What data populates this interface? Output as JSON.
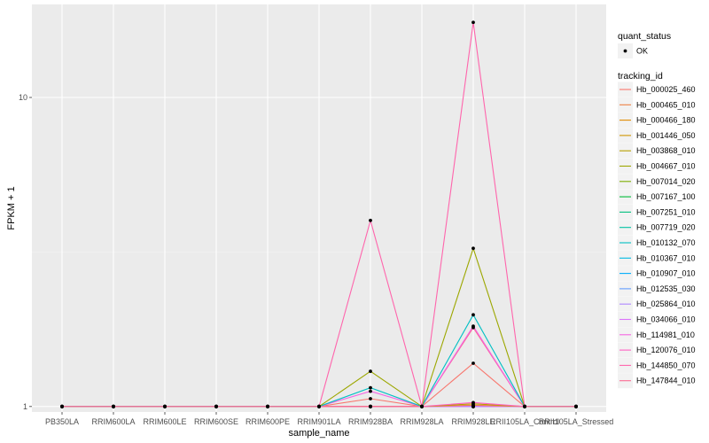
{
  "chart_data": {
    "type": "line",
    "title": "",
    "xlabel": "sample_name",
    "ylabel": "FPKM + 1",
    "y_scale": "log10",
    "ylim": [
      0.96,
      20
    ],
    "y_ticks": [
      1,
      10
    ],
    "y_tick_labels": [
      "1",
      "10"
    ],
    "grid": true,
    "panel_background": "#ebebeb",
    "categories": [
      "PB350LA",
      "RRIM600LA",
      "RRIM600LE",
      "RRIM600SE",
      "RRIM600PE",
      "RRIM901LA",
      "RRIM928BA",
      "RRIM928LA",
      "RRIM928LE",
      "RRII105LA_Control",
      "RRII105LA_Stressed"
    ],
    "legend": {
      "position": "right",
      "shape_title": "quant_status",
      "shape_items": [
        "OK"
      ],
      "color_title": "tracking_id"
    },
    "series": [
      {
        "name": "Hb_000025_460",
        "color": "#F8766D",
        "values": [
          1,
          1,
          1,
          1,
          1,
          1,
          1.06,
          1,
          1.38,
          1,
          1
        ]
      },
      {
        "name": "Hb_000465_010",
        "color": "#EE8044",
        "values": [
          1,
          1,
          1,
          1,
          1,
          1,
          1,
          1,
          1.01,
          1,
          1
        ]
      },
      {
        "name": "Hb_000466_180",
        "color": "#E08B00",
        "values": [
          1,
          1,
          1,
          1,
          1,
          1,
          1,
          1,
          1,
          1,
          1
        ]
      },
      {
        "name": "Hb_001446_050",
        "color": "#CF9400",
        "values": [
          1,
          1,
          1,
          1,
          1,
          1,
          1,
          1,
          1,
          1,
          1
        ]
      },
      {
        "name": "Hb_003868_010",
        "color": "#B79F00",
        "values": [
          1,
          1,
          1,
          1,
          1,
          1,
          1,
          1,
          1.02,
          1,
          1
        ]
      },
      {
        "name": "Hb_004667_010",
        "color": "#9CA700",
        "values": [
          1,
          1,
          1,
          1,
          1,
          1,
          1.3,
          1,
          3.25,
          1,
          1
        ]
      },
      {
        "name": "Hb_007014_020",
        "color": "#7CAE00",
        "values": [
          1,
          1,
          1,
          1,
          1,
          1,
          1,
          1,
          1,
          1,
          1
        ]
      },
      {
        "name": "Hb_007167_100",
        "color": "#00BA38",
        "values": [
          1,
          1,
          1,
          1,
          1,
          1,
          1,
          1,
          1,
          1,
          1
        ]
      },
      {
        "name": "Hb_007251_010",
        "color": "#00BF7D",
        "values": [
          1,
          1,
          1,
          1,
          1,
          1,
          1,
          1,
          1,
          1,
          1
        ]
      },
      {
        "name": "Hb_007719_020",
        "color": "#00C1A3",
        "values": [
          1,
          1,
          1,
          1,
          1,
          1,
          1,
          1,
          1,
          1,
          1
        ]
      },
      {
        "name": "Hb_010132_070",
        "color": "#00BFC4",
        "values": [
          1,
          1,
          1,
          1,
          1,
          1,
          1.15,
          1,
          1.98,
          1,
          1
        ]
      },
      {
        "name": "Hb_010367_010",
        "color": "#00B9E3",
        "values": [
          1,
          1,
          1,
          1,
          1,
          1,
          1,
          1,
          1,
          1,
          1
        ]
      },
      {
        "name": "Hb_010907_010",
        "color": "#00ADFA",
        "values": [
          1,
          1,
          1,
          1,
          1,
          1,
          1,
          1,
          1,
          1,
          1
        ]
      },
      {
        "name": "Hb_012535_030",
        "color": "#619CFF",
        "values": [
          1,
          1,
          1,
          1,
          1,
          1,
          1,
          1,
          1,
          1,
          1
        ]
      },
      {
        "name": "Hb_025864_010",
        "color": "#AE87FF",
        "values": [
          1,
          1,
          1,
          1,
          1,
          1,
          1,
          1,
          1,
          1,
          1
        ]
      },
      {
        "name": "Hb_034066_010",
        "color": "#DB72FB",
        "values": [
          1,
          1,
          1,
          1,
          1,
          1,
          1,
          1,
          1,
          1,
          1
        ]
      },
      {
        "name": "Hb_114981_010",
        "color": "#F564E3",
        "values": [
          1,
          1,
          1,
          1,
          1,
          1,
          1.12,
          1,
          1.82,
          1,
          1
        ]
      },
      {
        "name": "Hb_120076_010",
        "color": "#FF61C3",
        "values": [
          1,
          1,
          1,
          1,
          1,
          1,
          1,
          1,
          1.03,
          1,
          1
        ]
      },
      {
        "name": "Hb_144850_070",
        "color": "#FF65AC",
        "values": [
          1,
          1,
          1,
          1,
          1,
          1,
          4,
          1,
          17.5,
          1,
          1
        ]
      },
      {
        "name": "Hb_147844_010",
        "color": "#FB6B93",
        "values": [
          1,
          1,
          1,
          1,
          1,
          1,
          1,
          1,
          1.8,
          1,
          1
        ]
      }
    ]
  }
}
